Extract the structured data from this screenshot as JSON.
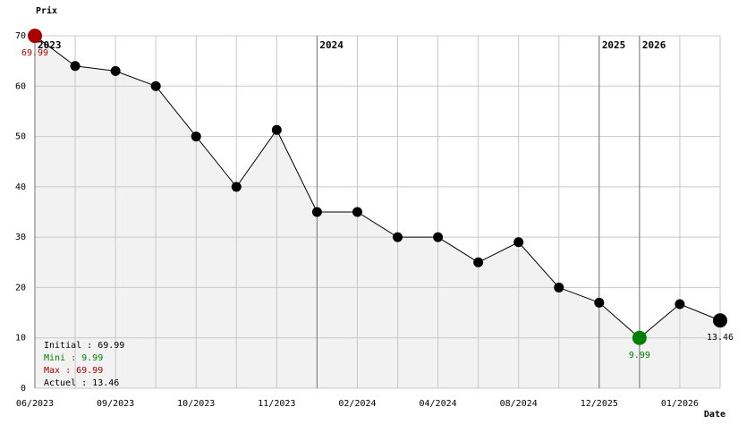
{
  "chart_data": {
    "type": "line",
    "y_label": "Prix",
    "x_label": "Date",
    "categories": [
      "06/2023",
      null,
      "09/2023",
      null,
      "10/2023",
      null,
      "11/2023",
      null,
      "02/2024",
      null,
      "04/2024",
      null,
      "08/2024",
      null,
      "12/2025",
      null,
      "01/2026",
      null
    ],
    "series": [
      {
        "name": "Prix",
        "color": "#000000",
        "values": [
          69.99,
          64,
          63,
          60,
          50,
          40,
          51.3,
          35,
          35,
          30,
          30,
          25,
          29,
          20,
          17,
          9.99,
          16.7,
          13.46
        ]
      }
    ],
    "ylim": [
      0,
      70
    ],
    "yticks": [
      0,
      10,
      20,
      30,
      40,
      50,
      60,
      70
    ],
    "grid": true,
    "fill_color": "#f2f2f2",
    "max_color": "#aa0000",
    "min_color": "#008000",
    "year_markers": [
      {
        "label": "2023",
        "category_index": 0
      },
      {
        "label": "2024",
        "category_index": 7
      },
      {
        "label": "2025",
        "category_index": 14
      },
      {
        "label": "2026",
        "category_index": 15
      }
    ],
    "legend": [
      {
        "text": "Initial : 69.99",
        "color": "#000000"
      },
      {
        "text": "Mini : 9.99",
        "color": "#008000"
      },
      {
        "text": "Max : 69.99",
        "color": "#aa0000"
      },
      {
        "text": "Actuel : 13.46",
        "color": "#000000"
      }
    ]
  }
}
